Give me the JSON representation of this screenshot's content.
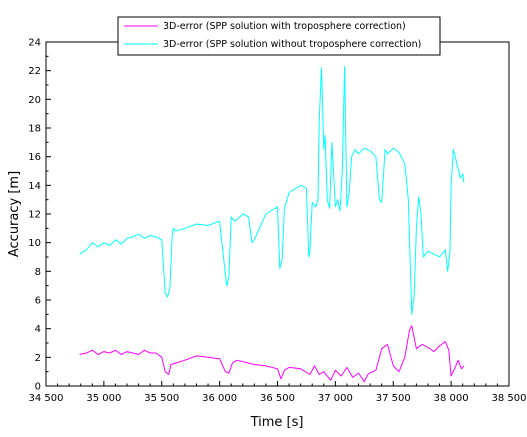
{
  "chart_data": {
    "type": "line",
    "xlabel": "Time [s]",
    "ylabel": "Accuracy [m]",
    "xlim": [
      34500,
      38500
    ],
    "ylim": [
      0,
      24
    ],
    "xticks": [
      34500,
      35000,
      35500,
      36000,
      36500,
      37000,
      37500,
      38000,
      38500
    ],
    "xtick_labels": [
      "34 500",
      "35 000",
      "35 500",
      "36 000",
      "36 500",
      "37 000",
      "37 500",
      "38 000",
      "38 500"
    ],
    "yticks": [
      0,
      2,
      4,
      6,
      8,
      10,
      12,
      14,
      16,
      18,
      20,
      22,
      24
    ],
    "ytick_labels": [
      "0",
      "2",
      "4",
      "6",
      "8",
      "10",
      "12",
      "14",
      "16",
      "18",
      "20",
      "22",
      "24"
    ],
    "legend_position": "top-center",
    "grid": false,
    "series": [
      {
        "name": "3D-error (SPP solution with troposphere correction)",
        "color": "#ff00ff",
        "x": [
          34790,
          34850,
          34900,
          34950,
          35000,
          35050,
          35100,
          35150,
          35200,
          35250,
          35300,
          35350,
          35400,
          35450,
          35500,
          35530,
          35560,
          35580,
          35620,
          35700,
          35800,
          35900,
          36000,
          36050,
          36080,
          36110,
          36150,
          36200,
          36300,
          36400,
          36500,
          36530,
          36560,
          36600,
          36700,
          36780,
          36820,
          36860,
          36900,
          36960,
          37000,
          37050,
          37100,
          37150,
          37200,
          37250,
          37280,
          37300,
          37350,
          37400,
          37450,
          37500,
          37550,
          37600,
          37640,
          37660,
          37700,
          37750,
          37800,
          37850,
          37900,
          37950,
          37980,
          38000,
          38030,
          38060,
          38090,
          38110
        ],
        "y": [
          2.2,
          2.3,
          2.5,
          2.2,
          2.4,
          2.3,
          2.5,
          2.2,
          2.4,
          2.3,
          2.2,
          2.5,
          2.3,
          2.3,
          2.0,
          1.0,
          0.8,
          1.5,
          1.6,
          1.8,
          2.1,
          2.0,
          1.9,
          1.0,
          0.9,
          1.6,
          1.8,
          1.7,
          1.5,
          1.4,
          1.2,
          0.5,
          1.1,
          1.3,
          1.2,
          0.8,
          1.4,
          0.8,
          1.0,
          0.4,
          1.1,
          0.7,
          1.3,
          0.6,
          0.9,
          0.3,
          0.8,
          0.9,
          1.1,
          2.6,
          2.9,
          1.4,
          1.0,
          2.0,
          3.9,
          4.2,
          2.6,
          2.9,
          2.7,
          2.4,
          2.8,
          3.1,
          2.5,
          0.7,
          1.2,
          1.8,
          1.2,
          1.4
        ]
      },
      {
        "name": "3D-error (SPP solution without troposphere correction)",
        "color": "#00ffff",
        "x": [
          34790,
          34850,
          34900,
          34950,
          35000,
          35050,
          35100,
          35150,
          35200,
          35250,
          35300,
          35350,
          35400,
          35450,
          35500,
          35530,
          35550,
          35570,
          35590,
          35600,
          35620,
          35700,
          35800,
          35900,
          36000,
          36060,
          36080,
          36100,
          36130,
          36150,
          36200,
          36250,
          36280,
          36300,
          36400,
          36500,
          36520,
          36540,
          36560,
          36600,
          36700,
          36750,
          36770,
          36780,
          36800,
          36830,
          36850,
          36860,
          36880,
          36900,
          36910,
          36930,
          36950,
          36970,
          37000,
          37020,
          37040,
          37060,
          37080,
          37100,
          37120,
          37140,
          37170,
          37200,
          37250,
          37300,
          37350,
          37380,
          37400,
          37430,
          37450,
          37500,
          37550,
          37600,
          37630,
          37660,
          37680,
          37700,
          37720,
          37740,
          37760,
          37800,
          37850,
          37900,
          37950,
          37970,
          37990,
          38000,
          38020,
          38050,
          38080,
          38100,
          38110
        ],
        "y": [
          9.2,
          9.5,
          10.0,
          9.7,
          10.0,
          9.8,
          10.2,
          9.9,
          10.3,
          10.4,
          10.6,
          10.3,
          10.5,
          10.4,
          10.2,
          6.5,
          6.2,
          6.8,
          10.5,
          11.0,
          10.8,
          11.0,
          11.3,
          11.2,
          11.5,
          7.0,
          7.6,
          11.8,
          11.5,
          11.6,
          12.0,
          11.8,
          10.0,
          10.2,
          12.0,
          12.5,
          8.2,
          8.8,
          12.4,
          13.5,
          14.0,
          13.8,
          9.0,
          9.4,
          12.8,
          12.5,
          13.0,
          18.5,
          22.2,
          16.5,
          17.5,
          13.0,
          12.4,
          17.0,
          12.5,
          13.0,
          12.2,
          15.0,
          22.3,
          12.5,
          13.5,
          16.0,
          16.5,
          16.2,
          16.6,
          16.4,
          16.0,
          13.0,
          12.8,
          16.5,
          16.2,
          16.6,
          16.3,
          15.5,
          13.0,
          5.0,
          6.2,
          11.0,
          13.2,
          12.0,
          9.0,
          9.4,
          9.2,
          9.0,
          9.5,
          8.0,
          9.4,
          14.0,
          16.5,
          15.5,
          14.5,
          14.8,
          14.2
        ]
      }
    ]
  }
}
